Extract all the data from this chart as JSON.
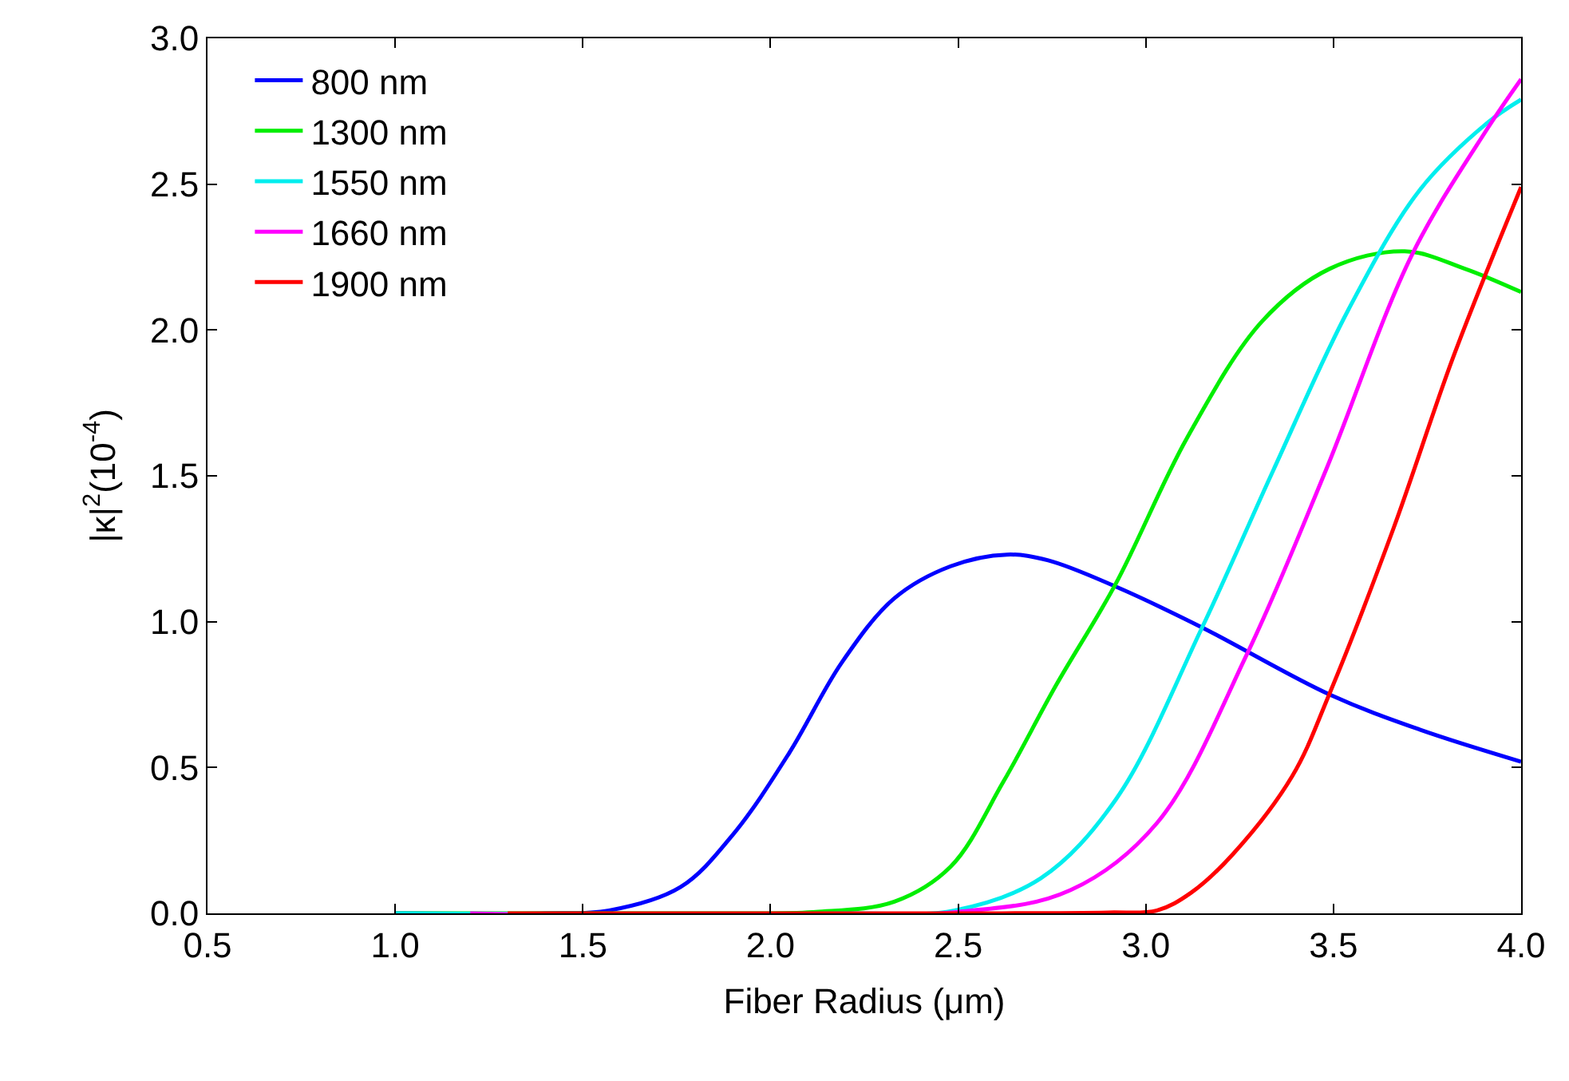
{
  "chart_data": {
    "type": "line",
    "xlabel": "Fiber Radius (μm)",
    "ylabel": "|κ|$^{2}$(10$^{-4}$)",
    "xlim": [
      0.5,
      4.0
    ],
    "xticks": [
      {
        "value": 0.5,
        "label": "0.5"
      },
      {
        "value": 1.0,
        "label": "1.0"
      },
      {
        "value": 1.5,
        "label": "1.5"
      },
      {
        "value": 2.0,
        "label": "2.0"
      },
      {
        "value": 2.5,
        "label": "2.5"
      },
      {
        "value": 3.0,
        "label": "3.0"
      },
      {
        "value": 3.5,
        "label": "3.5"
      },
      {
        "value": 4.0,
        "label": "4.0"
      }
    ],
    "ylim": [
      0,
      3.0
    ],
    "yticks": [
      {
        "value": 0,
        "label": "0.0"
      },
      {
        "value": 0.5,
        "label": "0.5"
      },
      {
        "value": 1.0,
        "label": "1.0"
      },
      {
        "value": 1.5,
        "label": "1.5"
      },
      {
        "value": 2.0,
        "label": "2.0"
      },
      {
        "value": 2.5,
        "label": "2.5"
      },
      {
        "value": 3.0,
        "label": "3.0"
      }
    ],
    "legend": "top left",
    "marker": "none",
    "line_style": "solid",
    "series": [
      {
        "name": "800 nm",
        "color": "#0000ff",
        "x": [
          1.0,
          1.4,
          1.57,
          1.76,
          1.9,
          2.05,
          2.19,
          2.33,
          2.48,
          2.63,
          2.74,
          2.92,
          3.15,
          3.49,
          3.73,
          4.0
        ],
        "values": [
          0,
          0,
          0.01,
          0.09,
          0.27,
          0.55,
          0.86,
          1.08,
          1.19,
          1.23,
          1.21,
          1.12,
          0.98,
          0.75,
          0.63,
          0.52
        ]
      },
      {
        "name": "1300 nm",
        "color": "#00ee00",
        "x": [
          1.0,
          1.9,
          2.12,
          2.33,
          2.48,
          2.62,
          2.76,
          2.92,
          3.11,
          3.31,
          3.49,
          3.69,
          3.85,
          4.0
        ],
        "values": [
          0,
          0,
          0.005,
          0.04,
          0.16,
          0.45,
          0.78,
          1.13,
          1.63,
          2.03,
          2.21,
          2.27,
          2.21,
          2.13
        ]
      },
      {
        "name": "1550 nm",
        "color": "#00eeee",
        "x": [
          1.0,
          2.2,
          2.49,
          2.72,
          2.92,
          3.15,
          3.34,
          3.54,
          3.73,
          3.91,
          4.0
        ],
        "values": [
          0,
          0,
          0.01,
          0.12,
          0.39,
          0.98,
          1.52,
          2.07,
          2.48,
          2.71,
          2.79
        ]
      },
      {
        "name": "1660 nm",
        "color": "#ff00ff",
        "x": [
          1.2,
          2.5,
          2.8,
          3.03,
          3.27,
          3.48,
          3.71,
          3.91,
          4.0
        ],
        "values": [
          0,
          0.005,
          0.08,
          0.31,
          0.89,
          1.52,
          2.26,
          2.69,
          2.86
        ]
      },
      {
        "name": "1900 nm",
        "color": "#ff0000",
        "x": [
          1.3,
          2.5,
          2.9,
          3.03,
          3.12,
          3.23,
          3.39,
          3.49,
          3.66,
          3.82,
          4.0
        ],
        "values": [
          0,
          0,
          0.003,
          0.01,
          0.07,
          0.2,
          0.47,
          0.755,
          1.32,
          1.91,
          2.49
        ]
      }
    ]
  }
}
